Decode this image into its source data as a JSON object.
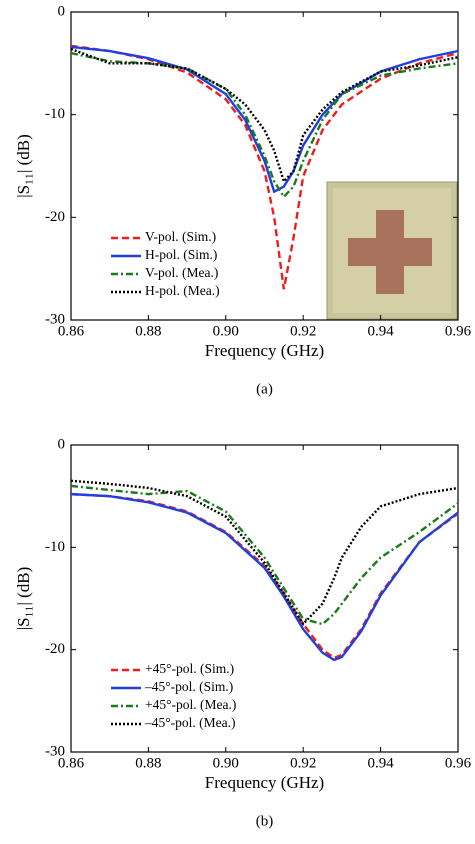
{
  "chart_data": [
    {
      "type": "line",
      "caption": "(a)",
      "x_label": "Frequency (GHz)",
      "y_label": "|S₁₁| (dB)",
      "xlim": [
        0.86,
        0.96
      ],
      "ylim": [
        -30,
        0
      ],
      "xticks": [
        0.86,
        0.88,
        {
          "value": 0.9,
          "label": "0.90"
        },
        0.92,
        0.94,
        0.96
      ],
      "yticks": [
        0,
        -10,
        -20,
        -30
      ],
      "legend": "lower-left",
      "x": [
        0.86,
        0.87,
        0.88,
        0.89,
        0.9,
        0.905,
        0.91,
        0.9125,
        0.915,
        0.9175,
        0.92,
        0.925,
        0.93,
        0.94,
        0.95,
        0.96
      ],
      "series": [
        {
          "name": "V-pol. (Sim.)",
          "color": "#ee1c1c",
          "dash": "dashed",
          "values": [
            -3.3,
            -3.8,
            -4.6,
            -5.9,
            -8.5,
            -11,
            -15.5,
            -20,
            -27,
            -22,
            -16,
            -11.5,
            -9,
            -6.5,
            -5,
            -4
          ]
        },
        {
          "name": "H-pol. (Sim.)",
          "color": "#1f3fe0",
          "dash": "solid",
          "values": [
            -3.4,
            -3.8,
            -4.5,
            -5.6,
            -8,
            -10.5,
            -14.5,
            -17.5,
            -17,
            -15.5,
            -13,
            -10,
            -8,
            -5.8,
            -4.6,
            -3.8
          ]
        },
        {
          "name": "V-pol. (Mea.)",
          "color": "#1a7a1a",
          "dash": "dashdot",
          "values": [
            -4,
            -4.8,
            -5,
            -5.5,
            -7.5,
            -10,
            -14,
            -16.5,
            -18,
            -17,
            -14.5,
            -10.5,
            -8,
            -6.2,
            -5.5,
            -5
          ]
        },
        {
          "name": "H-pol. (Mea.)",
          "color": "#000000",
          "dash": "dotted",
          "values": [
            -3.6,
            -5,
            -5,
            -5.5,
            -7.5,
            -9,
            -11.5,
            -13.5,
            -16.5,
            -15.5,
            -12,
            -9.5,
            -7.8,
            -5.8,
            -5.2,
            -4.4
          ]
        }
      ]
    },
    {
      "type": "line",
      "caption": "(b)",
      "x_label": "Frequency (GHz)",
      "y_label": "|S₁₁| (dB)",
      "xlim": [
        0.86,
        0.96
      ],
      "ylim": [
        -30,
        0
      ],
      "xticks": [
        0.86,
        0.88,
        {
          "value": 0.9,
          "label": "0.90"
        },
        0.92,
        0.94,
        0.96
      ],
      "yticks": [
        0,
        -10,
        -20,
        -30
      ],
      "legend": "lower-left",
      "x": [
        0.86,
        0.87,
        0.88,
        0.89,
        0.9,
        0.91,
        0.915,
        0.92,
        0.925,
        0.928,
        0.93,
        0.935,
        0.94,
        0.95,
        0.96
      ],
      "series": [
        {
          "name": "+45°-pol. (Sim.)",
          "color": "#ee1c1c",
          "dash": "dashed",
          "values": [
            -4.8,
            -5,
            -5.5,
            -6.5,
            -8.5,
            -11.8,
            -14.5,
            -17.5,
            -20,
            -20.8,
            -20.5,
            -18,
            -14.5,
            -9.5,
            -6.7
          ]
        },
        {
          "name": "–45°-pol. (Sim.)",
          "color": "#1f3fe0",
          "dash": "solid",
          "values": [
            -4.8,
            -5,
            -5.6,
            -6.6,
            -8.6,
            -12,
            -14.8,
            -18,
            -20.3,
            -21,
            -20.7,
            -18.2,
            -14.7,
            -9.5,
            -6.6
          ]
        },
        {
          "name": "+45°-pol. (Mea.)",
          "color": "#1a7a1a",
          "dash": "dashdot",
          "values": [
            -4,
            -4.4,
            -4.8,
            -4.5,
            -6.5,
            -11,
            -14,
            -17,
            -17.5,
            -16.5,
            -15.5,
            -13,
            -11,
            -8.5,
            -5.7
          ]
        },
        {
          "name": "–45°-pol. (Mea.)",
          "color": "#000000",
          "dash": "dotted",
          "values": [
            -3.5,
            -3.8,
            -4.2,
            -5,
            -7,
            -11.5,
            -14.5,
            -17.5,
            -15.5,
            -13,
            -11,
            -8,
            -6,
            -4.8,
            -4.2
          ]
        }
      ]
    }
  ]
}
